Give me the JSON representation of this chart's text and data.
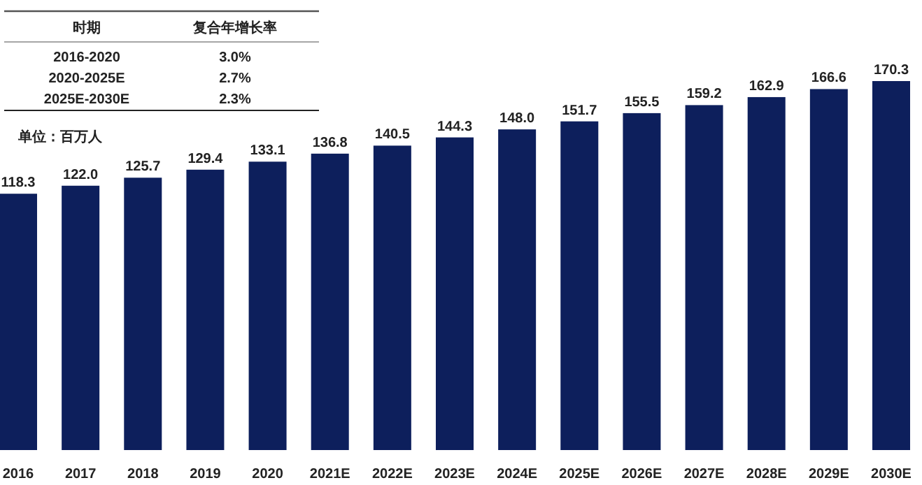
{
  "chart_data": {
    "type": "bar",
    "ylabel": "单位：百万人",
    "color": "#0d1f5c",
    "value_labels": [
      "118.3",
      "122.0",
      "125.7",
      "129.4",
      "133.1",
      "136.8",
      "140.5",
      "144.3",
      "148.0",
      "151.7",
      "155.5",
      "159.2",
      "162.9",
      "166.6",
      "170.3"
    ],
    "categories": [
      "2016",
      "2017",
      "2018",
      "2019",
      "2020",
      "2021E",
      "2022E",
      "2023E",
      "2024E",
      "2025E",
      "2026E",
      "2027E",
      "2028E",
      "2029E",
      "2030E"
    ],
    "values": [
      118.3,
      122.0,
      125.7,
      129.4,
      133.1,
      136.8,
      140.5,
      144.3,
      148.0,
      151.7,
      155.5,
      159.2,
      162.9,
      166.6,
      170.3
    ],
    "annotations": [
      "时期",
      "复合年增长率",
      "2016-2020",
      "3.0%",
      "2020-2025E",
      "2.7%",
      "2025E-2030E",
      "2.3%"
    ]
  }
}
